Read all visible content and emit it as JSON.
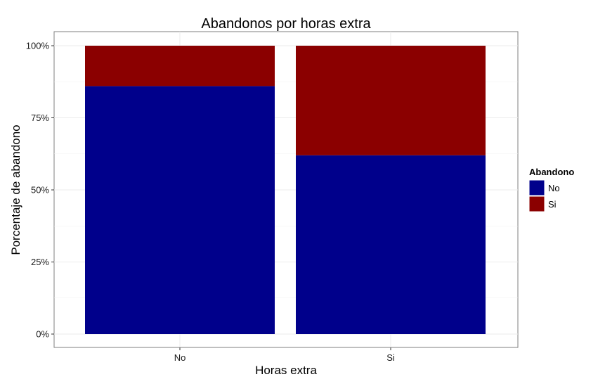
{
  "chart_data": {
    "type": "bar",
    "stacked": true,
    "normalized": true,
    "title": "Abandonos por horas extra",
    "xlabel": "Horas extra",
    "ylabel": "Porcentaje de abandono",
    "categories": [
      "No",
      "Si"
    ],
    "series": [
      {
        "name": "No",
        "color": "#00008B",
        "values": [
          0.86,
          0.62
        ]
      },
      {
        "name": "Si",
        "color": "#8B0000",
        "values": [
          0.14,
          0.38
        ]
      }
    ],
    "ylim": [
      0,
      1
    ],
    "yticks": [
      0,
      0.25,
      0.5,
      0.75,
      1
    ],
    "ytick_labels": [
      "0%",
      "25%",
      "50%",
      "75%",
      "100%"
    ],
    "grid": true,
    "legend": {
      "title": "Abandono",
      "position": "right"
    }
  }
}
